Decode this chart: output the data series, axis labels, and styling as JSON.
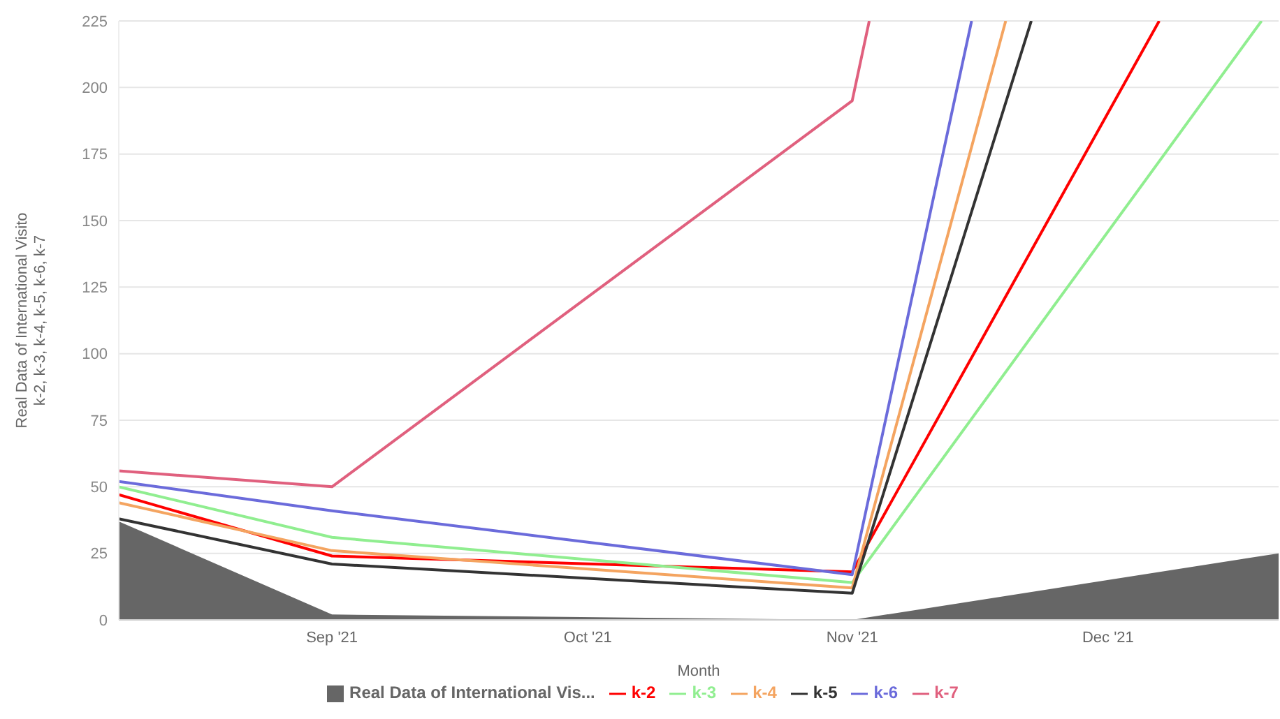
{
  "chart_data": {
    "type": "line",
    "xlabel": "Month",
    "ylabel": "Real Data of International Visito\nk-2, k-3, k-4, k-5, k-6, k-7",
    "xlim": [
      "2021-08-07",
      "2021-12-21"
    ],
    "xticks": [
      {
        "value": "2021-09-01",
        "label": "Sep '21"
      },
      {
        "value": "2021-10-01",
        "label": "Oct '21"
      },
      {
        "value": "2021-11-01",
        "label": "Nov '21"
      },
      {
        "value": "2021-12-01",
        "label": "Dec '21"
      }
    ],
    "ylim": [
      0,
      225
    ],
    "yticks": [
      0,
      25,
      50,
      75,
      100,
      125,
      150,
      175,
      200,
      225
    ],
    "grid": "y",
    "legend": "bottom",
    "marker": "none",
    "line_style": "solid",
    "series": [
      {
        "name": "Real Data of International Vis...",
        "type": "area",
        "color": "#666666",
        "x": [
          "2021-08-07",
          "2021-09-01",
          "2021-11-01",
          "2021-12-21"
        ],
        "values": [
          37,
          2,
          0,
          25
        ]
      },
      {
        "name": "k-2",
        "color": "#ff0000",
        "x": [
          "2021-08-07",
          "2021-09-01",
          "2021-11-01",
          "2021-12-07"
        ],
        "values": [
          47,
          24,
          18,
          225
        ]
      },
      {
        "name": "k-3",
        "color": "#90ee90",
        "x": [
          "2021-08-07",
          "2021-09-01",
          "2021-11-01",
          "2021-12-19"
        ],
        "values": [
          50,
          31,
          14,
          225
        ]
      },
      {
        "name": "k-4",
        "color": "#f4a460",
        "x": [
          "2021-08-07",
          "2021-09-01",
          "2021-11-01",
          "2021-11-19"
        ],
        "values": [
          44,
          26,
          12,
          225
        ]
      },
      {
        "name": "k-5",
        "color": "#333333",
        "x": [
          "2021-08-07",
          "2021-09-01",
          "2021-11-01",
          "2021-11-22"
        ],
        "values": [
          38,
          21,
          10,
          225
        ]
      },
      {
        "name": "k-6",
        "color": "#6b6bdb",
        "x": [
          "2021-08-07",
          "2021-09-01",
          "2021-11-01",
          "2021-11-15"
        ],
        "values": [
          52,
          41,
          17,
          225
        ]
      },
      {
        "name": "k-7",
        "color": "#e0607e",
        "x": [
          "2021-08-07",
          "2021-09-01",
          "2021-11-01",
          "2021-11-03"
        ],
        "values": [
          56,
          50,
          195,
          225
        ]
      }
    ]
  }
}
